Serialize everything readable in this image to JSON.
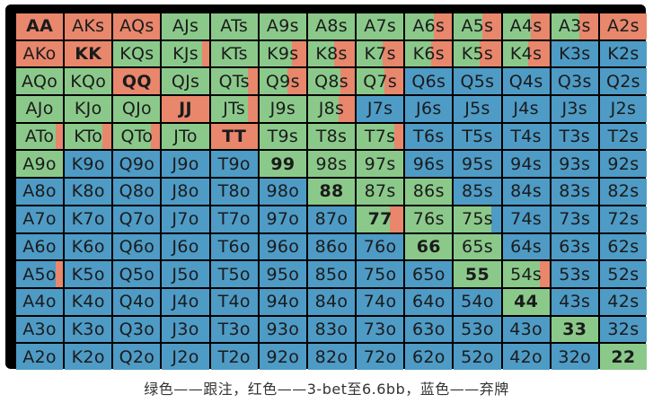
{
  "colors": {
    "fold": "#4e9bc6",
    "raise": "#e8876c",
    "call": "#8bc98b"
  },
  "caption": "绿色——跟注，红色——3-bet至6.6bb，蓝色——弃牌",
  "rows": [
    [
      [
        "AA",
        "raise"
      ],
      [
        "AKs",
        "raise"
      ],
      [
        "AQs",
        "raise"
      ],
      [
        "AJs",
        "call"
      ],
      [
        "ATs",
        "call"
      ],
      [
        "A9s",
        "call"
      ],
      [
        "A8s",
        "call"
      ],
      [
        "A7s",
        "call"
      ],
      [
        "A6s",
        "call",
        "raise",
        0.4
      ],
      [
        "A5s",
        "call",
        "raise",
        0.4
      ],
      [
        "A4s",
        "call",
        "raise",
        0.4
      ],
      [
        "A3s",
        "call",
        "raise",
        0.4
      ],
      [
        "A2s",
        "raise"
      ]
    ],
    [
      [
        "AKo",
        "raise"
      ],
      [
        "KK",
        "raise"
      ],
      [
        "KQs",
        "call"
      ],
      [
        "KJs",
        "call",
        "raise",
        0.15
      ],
      [
        "KTs",
        "call"
      ],
      [
        "K9s",
        "call",
        "raise",
        0.3
      ],
      [
        "K8s",
        "call",
        "raise",
        0.45
      ],
      [
        "K7s",
        "call",
        "raise",
        0.45
      ],
      [
        "K6s",
        "call",
        "raise",
        0.45
      ],
      [
        "K5s",
        "call",
        "raise",
        0.45
      ],
      [
        "K4s",
        "call",
        "raise",
        0.45
      ],
      [
        "K3s",
        "fold"
      ],
      [
        "K2s",
        "fold"
      ]
    ],
    [
      [
        "AQo",
        "call"
      ],
      [
        "KQo",
        "call"
      ],
      [
        "QQ",
        "raise"
      ],
      [
        "QJs",
        "call"
      ],
      [
        "QTs",
        "call",
        "raise",
        0.2
      ],
      [
        "Q9s",
        "call",
        "raise",
        0.4
      ],
      [
        "Q8s",
        "call",
        "raise",
        0.3
      ],
      [
        "Q7s",
        "call",
        "raise",
        0.4
      ],
      [
        "Q6s",
        "fold"
      ],
      [
        "Q5s",
        "fold"
      ],
      [
        "Q4s",
        "fold"
      ],
      [
        "Q3s",
        "fold"
      ],
      [
        "Q2s",
        "fold"
      ]
    ],
    [
      [
        "AJo",
        "call"
      ],
      [
        "KJo",
        "call"
      ],
      [
        "QJo",
        "call"
      ],
      [
        "JJ",
        "raise"
      ],
      [
        "JTs",
        "call",
        "raise",
        0.2
      ],
      [
        "J9s",
        "call"
      ],
      [
        "J8s",
        "call",
        "raise",
        0.35
      ],
      [
        "J7s",
        "fold"
      ],
      [
        "J6s",
        "fold"
      ],
      [
        "J5s",
        "fold"
      ],
      [
        "J4s",
        "fold"
      ],
      [
        "J3s",
        "fold"
      ],
      [
        "J2s",
        "fold"
      ]
    ],
    [
      [
        "ATo",
        "call",
        "raise",
        0.15
      ],
      [
        "KTo",
        "call",
        "raise",
        0.2
      ],
      [
        "QTo",
        "call",
        "raise",
        0.2
      ],
      [
        "JTo",
        "call"
      ],
      [
        "TT",
        "raise"
      ],
      [
        "T9s",
        "call"
      ],
      [
        "T8s",
        "call"
      ],
      [
        "T7s",
        "call",
        "raise",
        0.2
      ],
      [
        "T6s",
        "fold"
      ],
      [
        "T5s",
        "fold"
      ],
      [
        "T4s",
        "fold"
      ],
      [
        "T3s",
        "fold"
      ],
      [
        "T2s",
        "fold"
      ]
    ],
    [
      [
        "A9o",
        "call"
      ],
      [
        "K9o",
        "fold"
      ],
      [
        "Q9o",
        "fold"
      ],
      [
        "J9o",
        "fold"
      ],
      [
        "T9o",
        "fold"
      ],
      [
        "99",
        "call"
      ],
      [
        "98s",
        "call"
      ],
      [
        "97s",
        "call"
      ],
      [
        "96s",
        "fold"
      ],
      [
        "95s",
        "fold"
      ],
      [
        "94s",
        "fold"
      ],
      [
        "93s",
        "fold"
      ],
      [
        "92s",
        "fold"
      ]
    ],
    [
      [
        "A8o",
        "fold"
      ],
      [
        "K8o",
        "fold"
      ],
      [
        "Q8o",
        "fold"
      ],
      [
        "J8o",
        "fold"
      ],
      [
        "T8o",
        "fold"
      ],
      [
        "98o",
        "fold"
      ],
      [
        "88",
        "call"
      ],
      [
        "87s",
        "call"
      ],
      [
        "86s",
        "call"
      ],
      [
        "85s",
        "fold"
      ],
      [
        "84s",
        "fold"
      ],
      [
        "83s",
        "fold"
      ],
      [
        "82s",
        "fold"
      ]
    ],
    [
      [
        "A7o",
        "fold"
      ],
      [
        "K7o",
        "fold"
      ],
      [
        "Q7o",
        "fold"
      ],
      [
        "J7o",
        "fold"
      ],
      [
        "T7o",
        "fold"
      ],
      [
        "97o",
        "fold"
      ],
      [
        "87o",
        "fold"
      ],
      [
        "77",
        "call",
        "raise",
        0.3
      ],
      [
        "76s",
        "call"
      ],
      [
        "75s",
        "call",
        "fold",
        0.2
      ],
      [
        "74s",
        "fold"
      ],
      [
        "73s",
        "fold"
      ],
      [
        "72s",
        "fold"
      ]
    ],
    [
      [
        "A6o",
        "fold"
      ],
      [
        "K6o",
        "fold"
      ],
      [
        "Q6o",
        "fold"
      ],
      [
        "J6o",
        "fold"
      ],
      [
        "T6o",
        "fold"
      ],
      [
        "96o",
        "fold"
      ],
      [
        "86o",
        "fold"
      ],
      [
        "76o",
        "fold"
      ],
      [
        "66",
        "call"
      ],
      [
        "65s",
        "call"
      ],
      [
        "64s",
        "fold"
      ],
      [
        "63s",
        "fold"
      ],
      [
        "62s",
        "fold"
      ]
    ],
    [
      [
        "A5o",
        "fold",
        "raise",
        0.15
      ],
      [
        "K5o",
        "fold"
      ],
      [
        "Q5o",
        "fold"
      ],
      [
        "J5o",
        "fold"
      ],
      [
        "T5o",
        "fold"
      ],
      [
        "95o",
        "fold"
      ],
      [
        "85o",
        "fold"
      ],
      [
        "75o",
        "fold"
      ],
      [
        "65o",
        "fold"
      ],
      [
        "55",
        "call"
      ],
      [
        "54s",
        "call",
        "raise",
        0.2
      ],
      [
        "53s",
        "fold"
      ],
      [
        "52s",
        "fold"
      ]
    ],
    [
      [
        "A4o",
        "fold"
      ],
      [
        "K4o",
        "fold"
      ],
      [
        "Q4o",
        "fold"
      ],
      [
        "J4o",
        "fold"
      ],
      [
        "T4o",
        "fold"
      ],
      [
        "94o",
        "fold"
      ],
      [
        "84o",
        "fold"
      ],
      [
        "74o",
        "fold"
      ],
      [
        "64o",
        "fold"
      ],
      [
        "54o",
        "fold"
      ],
      [
        "44",
        "call"
      ],
      [
        "43s",
        "fold"
      ],
      [
        "42s",
        "fold"
      ]
    ],
    [
      [
        "A3o",
        "fold"
      ],
      [
        "K3o",
        "fold"
      ],
      [
        "Q3o",
        "fold"
      ],
      [
        "J3o",
        "fold"
      ],
      [
        "T3o",
        "fold"
      ],
      [
        "93o",
        "fold"
      ],
      [
        "83o",
        "fold"
      ],
      [
        "73o",
        "fold"
      ],
      [
        "63o",
        "fold"
      ],
      [
        "53o",
        "fold"
      ],
      [
        "43o",
        "fold"
      ],
      [
        "33",
        "call"
      ],
      [
        "32s",
        "fold"
      ]
    ],
    [
      [
        "A2o",
        "fold"
      ],
      [
        "K2o",
        "fold"
      ],
      [
        "Q2o",
        "fold"
      ],
      [
        "J2o",
        "fold"
      ],
      [
        "T2o",
        "fold"
      ],
      [
        "92o",
        "fold"
      ],
      [
        "82o",
        "fold"
      ],
      [
        "72o",
        "fold"
      ],
      [
        "62o",
        "fold"
      ],
      [
        "52o",
        "fold"
      ],
      [
        "42o",
        "fold"
      ],
      [
        "32o",
        "fold"
      ],
      [
        "22",
        "call"
      ]
    ]
  ]
}
